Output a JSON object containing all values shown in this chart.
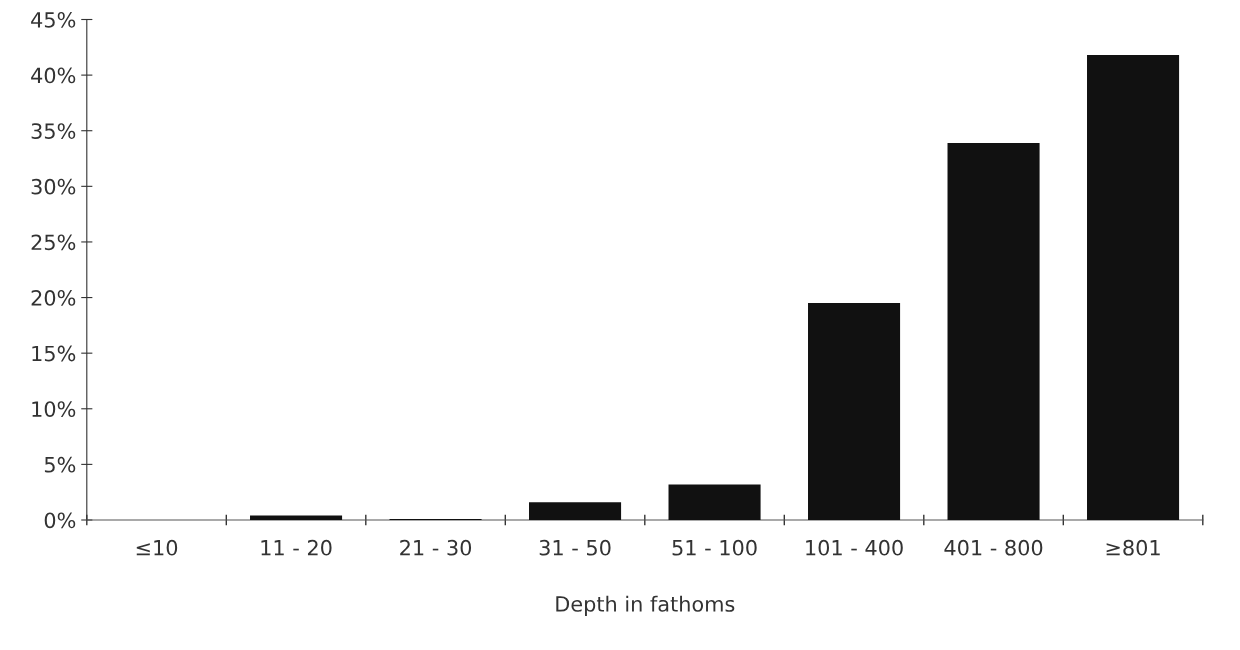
{
  "chart_data": {
    "type": "bar",
    "xlabel": "Depth in fathoms",
    "categories": [
      "≤10",
      "11 - 20",
      "21 - 30",
      "31 - 50",
      "51 - 100",
      "101 - 400",
      "401 - 800",
      "≥801"
    ],
    "values": [
      0,
      0.4,
      0.1,
      1.6,
      3.2,
      19.5,
      33.9,
      41.8
    ],
    "color": "#111111",
    "ylim": [
      0,
      45
    ],
    "yticks": [
      {
        "value": 0,
        "label": "0%"
      },
      {
        "value": 5,
        "label": "5%"
      },
      {
        "value": 10,
        "label": "10%"
      },
      {
        "value": 15,
        "label": "15%"
      },
      {
        "value": 20,
        "label": "20%"
      },
      {
        "value": 25,
        "label": "25%"
      },
      {
        "value": 30,
        "label": "30%"
      },
      {
        "value": 35,
        "label": "35%"
      },
      {
        "value": 40,
        "label": "40%"
      },
      {
        "value": 45,
        "label": "45%"
      }
    ],
    "grid": false,
    "legend": false
  }
}
